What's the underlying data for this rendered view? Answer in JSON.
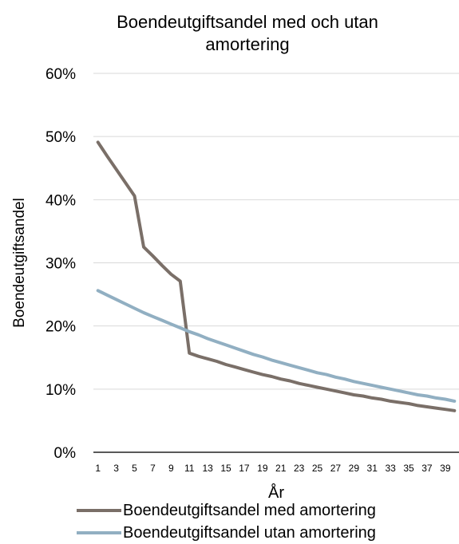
{
  "chart_data": {
    "type": "line",
    "title_lines": [
      "Boendeutgiftsandel med och utan",
      "amortering"
    ],
    "xlabel": "År",
    "ylabel": "Boendeutgiftsandel",
    "x": [
      1,
      2,
      3,
      4,
      5,
      6,
      7,
      8,
      9,
      10,
      11,
      12,
      13,
      14,
      15,
      16,
      17,
      18,
      19,
      20,
      21,
      22,
      23,
      24,
      25,
      26,
      27,
      28,
      29,
      30,
      31,
      32,
      33,
      34,
      35,
      36,
      37,
      38,
      39,
      40
    ],
    "x_tick_labels": [
      "1",
      "3",
      "5",
      "7",
      "9",
      "11",
      "13",
      "15",
      "17",
      "19",
      "21",
      "23",
      "25",
      "27",
      "29",
      "31",
      "33",
      "35",
      "37",
      "39"
    ],
    "y_tick_labels": [
      "0%",
      "10%",
      "20%",
      "30%",
      "40%",
      "50%",
      "60%"
    ],
    "ylim": [
      0,
      0.6
    ],
    "grid": "horizontal",
    "legend_position": "bottom",
    "series": [
      {
        "name": "Boendeutgiftsandel med amortering",
        "color": "#7a6f68",
        "values": [
          0.491,
          0.469,
          0.448,
          0.427,
          0.406,
          0.325,
          0.311,
          0.296,
          0.282,
          0.271,
          0.157,
          0.152,
          0.148,
          0.144,
          0.139,
          0.135,
          0.131,
          0.127,
          0.123,
          0.12,
          0.116,
          0.113,
          0.109,
          0.106,
          0.103,
          0.1,
          0.097,
          0.094,
          0.091,
          0.089,
          0.086,
          0.084,
          0.081,
          0.079,
          0.077,
          0.074,
          0.072,
          0.07,
          0.068,
          0.066
        ]
      },
      {
        "name": "Boendeutgiftsandel utan amortering",
        "color": "#91afc2",
        "values": [
          0.256,
          0.249,
          0.242,
          0.235,
          0.228,
          0.221,
          0.215,
          0.209,
          0.203,
          0.197,
          0.191,
          0.186,
          0.18,
          0.175,
          0.17,
          0.165,
          0.16,
          0.155,
          0.151,
          0.146,
          0.142,
          0.138,
          0.134,
          0.13,
          0.126,
          0.123,
          0.119,
          0.116,
          0.112,
          0.109,
          0.106,
          0.103,
          0.1,
          0.097,
          0.094,
          0.091,
          0.089,
          0.086,
          0.084,
          0.081
        ]
      }
    ]
  }
}
